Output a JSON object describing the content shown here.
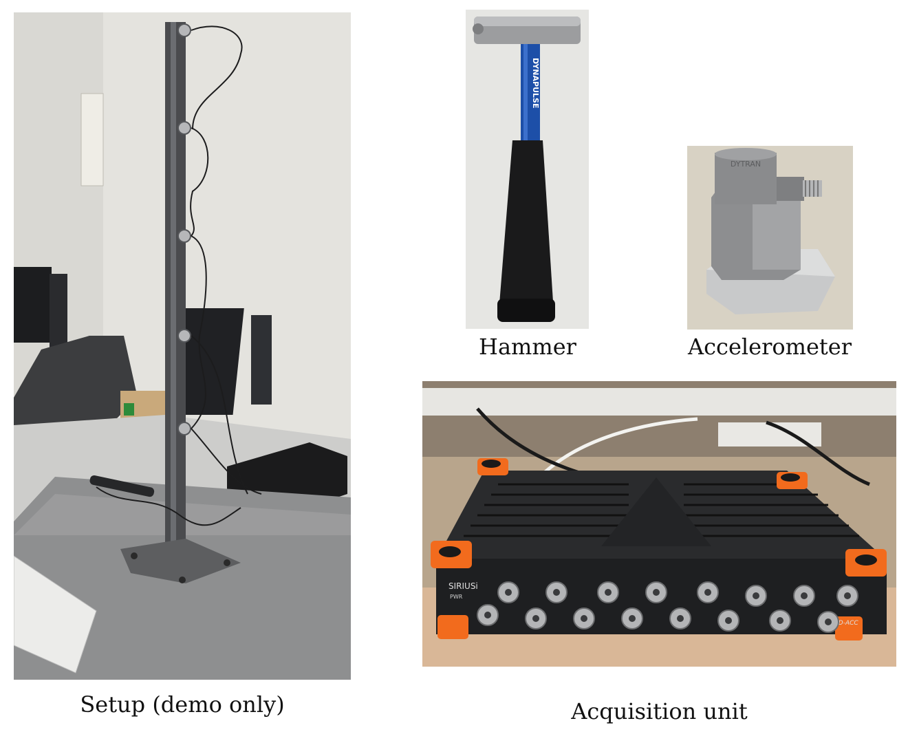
{
  "captions": {
    "setup": "Setup (demo only)",
    "hammer": "Hammer",
    "accelerometer": "Accelerometer",
    "acquisition": "Acquisition unit"
  },
  "photo_text": {
    "hammer_brand": "DYNAPULSE",
    "accel_brand": "DYTRAN",
    "daq_brand": "SIRIUSi",
    "daq_power": "PWR",
    "daq_model": "HD-ACC"
  },
  "colors": {
    "background": "#ffffff",
    "caption_text": "#111111",
    "hammer_shaft": "#1d4fa8",
    "daq_accent": "#f26b1d",
    "steel": "#8a8d90"
  }
}
